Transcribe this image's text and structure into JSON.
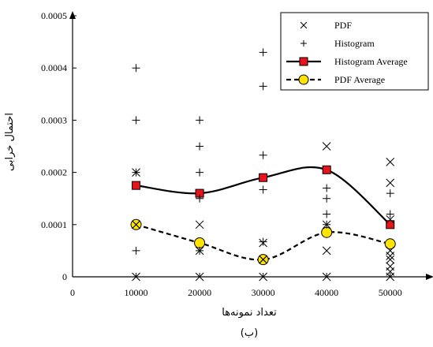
{
  "chart_data": {
    "type": "line",
    "xlabel": "تعداد نمونه‌ها",
    "ylabel": "احتمال خرابی",
    "caption": "(ب)",
    "xlim": [
      0,
      55000
    ],
    "ylim": [
      0,
      0.0005
    ],
    "x_ticks": [
      0,
      10000,
      20000,
      30000,
      40000,
      50000
    ],
    "x_tick_labels": [
      "0",
      "10000",
      "20000",
      "30000",
      "40000",
      "50000"
    ],
    "y_ticks": [
      0,
      0.0001,
      0.0002,
      0.0003,
      0.0004,
      0.0005
    ],
    "y_tick_labels": [
      "0",
      "0.0001",
      "0.0002",
      "0.0003",
      "0.0004",
      "0.0005"
    ],
    "grid": false,
    "legend_position": "top-right",
    "series": [
      {
        "name": "PDF",
        "style": "x-markers",
        "points": [
          [
            10000,
            0.0002
          ],
          [
            10000,
            0.0001
          ],
          [
            10000,
            0
          ],
          [
            20000,
            0.0001
          ],
          [
            20000,
            5e-05
          ],
          [
            20000,
            0
          ],
          [
            30000,
            6.5e-05
          ],
          [
            30000,
            3.3e-05
          ],
          [
            30000,
            0
          ],
          [
            40000,
            0.00025
          ],
          [
            40000,
            0.0001
          ],
          [
            40000,
            5e-05
          ],
          [
            40000,
            0
          ],
          [
            50000,
            0.00022
          ],
          [
            50000,
            0.00018
          ],
          [
            50000,
            0.00011
          ],
          [
            50000,
            5e-05
          ],
          [
            50000,
            4e-05
          ],
          [
            50000,
            3.3e-05
          ],
          [
            50000,
            2e-05
          ],
          [
            50000,
            1e-05
          ],
          [
            50000,
            0
          ]
        ]
      },
      {
        "name": "Histogram",
        "style": "plus-markers",
        "points": [
          [
            10000,
            0.0004
          ],
          [
            10000,
            0.0003
          ],
          [
            10000,
            0.0002
          ],
          [
            10000,
            5e-05
          ],
          [
            20000,
            0.0003
          ],
          [
            20000,
            0.00025
          ],
          [
            20000,
            0.0002
          ],
          [
            20000,
            0.00015
          ],
          [
            20000,
            5e-05
          ],
          [
            30000,
            0.00043
          ],
          [
            30000,
            0.000365
          ],
          [
            30000,
            0.000233
          ],
          [
            30000,
            0.000167
          ],
          [
            30000,
            6.7e-05
          ],
          [
            40000,
            0.00017
          ],
          [
            40000,
            0.00015
          ],
          [
            40000,
            0.00012
          ],
          [
            40000,
            0.0001
          ],
          [
            50000,
            0.00016
          ],
          [
            50000,
            0.00012
          ]
        ]
      },
      {
        "name": "Histogram Average",
        "style": "solid-line-square",
        "color": "#e8141b",
        "points": [
          [
            10000,
            0.000175
          ],
          [
            20000,
            0.00016
          ],
          [
            30000,
            0.00019
          ],
          [
            40000,
            0.000205
          ],
          [
            50000,
            0.0001
          ]
        ]
      },
      {
        "name": "PDF Average",
        "style": "dashed-line-circle",
        "color": "#ffe400",
        "points": [
          [
            10000,
            0.0001
          ],
          [
            20000,
            6.5e-05
          ],
          [
            30000,
            3.3e-05
          ],
          [
            40000,
            8.5e-05
          ],
          [
            50000,
            6.3e-05
          ]
        ]
      }
    ]
  }
}
